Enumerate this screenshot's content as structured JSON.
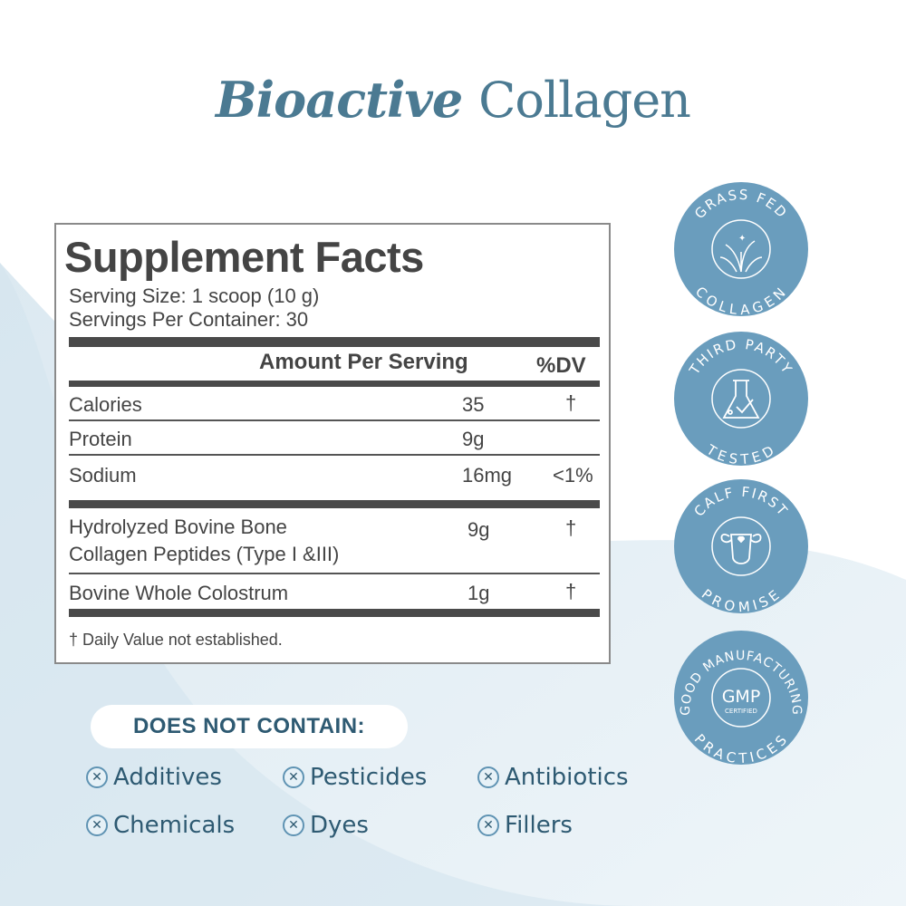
{
  "title": {
    "italic": "Bioactive",
    "regular": "Collagen"
  },
  "facts": {
    "heading": "Supplement Facts",
    "serving_size": "Serving Size: 1 scoop (10 g)",
    "servings_per_container": "Servings Per Container: 30",
    "col_amount": "Amount Per Serving",
    "col_dv": "%DV",
    "rows": [
      {
        "name": "Calories",
        "amount": "35",
        "dv": "†"
      },
      {
        "name": "Protein",
        "amount": "9g",
        "dv": ""
      },
      {
        "name": "Sodium",
        "amount": "16mg",
        "dv": "<1%"
      },
      {
        "name": "Hydrolyzed Bovine Bone",
        "name2": "Collagen Peptides (Type I &III)",
        "amount": "9g",
        "dv": "†"
      },
      {
        "name": "Bovine Whole Colostrum",
        "amount": "1g",
        "dv": "†"
      }
    ],
    "footnote": "† Daily Value not established."
  },
  "badges": [
    {
      "top": "GRASS FED",
      "bottom": "COLLAGEN",
      "icon": "grass-icon"
    },
    {
      "top": "THIRD PARTY",
      "bottom": "TESTED",
      "icon": "flask-icon"
    },
    {
      "top": "CALF FIRST",
      "bottom": "PROMISE",
      "icon": "calf-icon"
    },
    {
      "top": "GOOD MANUFACTURING",
      "bottom": "PRACTICES",
      "icon": "gmp-icon",
      "center": "GMP",
      "center_sub": "CERTIFIED"
    }
  ],
  "colors": {
    "accent": "#6a9dbd",
    "title": "#4b7a92",
    "text_dark": "#2e5a72"
  },
  "does_not_contain": {
    "label": "DOES NOT CONTAIN:",
    "items": [
      "Additives",
      "Pesticides",
      "Antibiotics",
      "Chemicals",
      "Dyes",
      "Fillers"
    ]
  }
}
